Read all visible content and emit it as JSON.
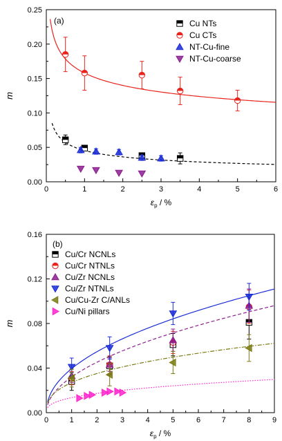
{
  "chart_data": [
    {
      "type": "scatter",
      "panel_label": "(a)",
      "xlabel": "ε",
      "xlabel_sub": "p",
      "xlabel_unit": " / %",
      "ylabel": "m",
      "xlim": [
        0,
        6
      ],
      "ylim": [
        0,
        0.25
      ],
      "xticks": [
        "0",
        "1",
        "2",
        "3",
        "4",
        "5",
        "6"
      ],
      "yticks": [
        "0.00",
        "0.05",
        "0.10",
        "0.15",
        "0.20",
        "0.25"
      ],
      "legend_position": "top-right",
      "series": [
        {
          "name": "Cu NTs",
          "marker": "square",
          "color": "#000000",
          "x": [
            0.5,
            1.0,
            2.5,
            3.5
          ],
          "y": [
            0.061,
            0.049,
            0.038,
            0.034
          ],
          "err": [
            0.007,
            0.004,
            0.004,
            0.008
          ]
        },
        {
          "name": "Cu CTs",
          "marker": "circle",
          "color": "#e8241c",
          "x": [
            0.5,
            1.0,
            2.5,
            3.5,
            5.0
          ],
          "y": [
            0.185,
            0.158,
            0.155,
            0.132,
            0.118
          ],
          "err": [
            0.025,
            0.025,
            0.02,
            0.02,
            0.015
          ]
        },
        {
          "name": "NT-Cu-fine",
          "marker": "triangle-up",
          "color": "#1a2bd6",
          "x": [
            0.9,
            1.3,
            1.9,
            2.5,
            3.0
          ],
          "y": [
            0.046,
            0.044,
            0.043,
            0.035,
            0.034
          ],
          "err": [
            0.004,
            0.004,
            0.004,
            0.004,
            0.004
          ]
        },
        {
          "name": "NT-Cu-coarse",
          "marker": "triangle-down",
          "color": "#8b1d8f",
          "x": [
            0.9,
            1.3,
            1.9,
            2.5
          ],
          "y": [
            0.019,
            0.017,
            0.013,
            0.012
          ],
          "err": [
            0,
            0,
            0,
            0
          ]
        }
      ],
      "fits": [
        {
          "color": "#e8241c",
          "dash": "",
          "a": 0.158,
          "b": -0.175,
          "x0": 0.0,
          "x1": 6.0
        },
        {
          "color": "#000000",
          "dash": "4,3",
          "a": 0.0455,
          "b": -0.33,
          "x0": 0.15,
          "x1": 6.0
        }
      ]
    },
    {
      "type": "scatter",
      "panel_label": "(b)",
      "xlabel": "ε",
      "xlabel_sub": "p",
      "xlabel_unit": " / %",
      "ylabel": "m",
      "xlim": [
        0,
        9
      ],
      "ylim": [
        0,
        0.16
      ],
      "xticks": [
        "0",
        "1",
        "2",
        "3",
        "4",
        "5",
        "6",
        "7",
        "8",
        "9"
      ],
      "yticks": [
        "0.00",
        "0.04",
        "0.08",
        "0.12",
        "0.16"
      ],
      "legend_position": "top-left",
      "series": [
        {
          "name": "Cu/Cr NCNLs",
          "marker": "square",
          "color": "#000000",
          "x": [
            1,
            2.5,
            5,
            8
          ],
          "y": [
            0.028,
            0.042,
            0.061,
            0.081
          ],
          "err": [
            0.008,
            0.008,
            0.01,
            0.015
          ]
        },
        {
          "name": "Cu/Cr NTNLs",
          "marker": "circle",
          "color": "#e8241c",
          "x": [
            1,
            2.5,
            5,
            8
          ],
          "y": [
            0.031,
            0.043,
            0.063,
            0.095
          ],
          "err": [
            0.006,
            0.008,
            0.01,
            0.015
          ]
        },
        {
          "name": "Cu/Zr NCNLs",
          "marker": "triangle-up",
          "color": "#8b1d8f",
          "x": [
            1,
            2.5,
            5,
            8
          ],
          "y": [
            0.033,
            0.043,
            0.065,
            0.096
          ],
          "err": [
            0.006,
            0.006,
            0.01,
            0.015
          ]
        },
        {
          "name": "Cu/Zr NTNLs",
          "marker": "triangle-down",
          "color": "#1a2bd6",
          "x": [
            1,
            2.5,
            5,
            8
          ],
          "y": [
            0.041,
            0.058,
            0.089,
            0.104
          ],
          "err": [
            0.008,
            0.01,
            0.01,
            0.012
          ]
        },
        {
          "name": "Cu/Cu-Zr C/ANLs",
          "marker": "triangle-left",
          "color": "#7a7a14",
          "x": [
            1,
            2.5,
            5,
            8
          ],
          "y": [
            0.031,
            0.034,
            0.045,
            0.058
          ],
          "err": [
            0.008,
            0.01,
            0.01,
            0.012
          ]
        },
        {
          "name": "Cu/Ni pillars",
          "marker": "triangle-right",
          "color": "#ff22cc",
          "x": [
            1.3,
            1.6,
            1.8,
            2.3,
            2.5,
            2.8,
            3.0
          ],
          "y": [
            0.013,
            0.015,
            0.016,
            0.018,
            0.019,
            0.019,
            0.018
          ],
          "err": [
            0,
            0,
            0,
            0,
            0,
            0,
            0
          ]
        }
      ],
      "fits": [
        {
          "color": "#1a2bd6",
          "dash": "",
          "a": 0.0395,
          "b": 0.47,
          "x0": 0.05,
          "x1": 9.0
        },
        {
          "color": "#8b1d8f",
          "dash": "5,3",
          "a": 0.032,
          "b": 0.5,
          "x0": 0.05,
          "x1": 9.0
        },
        {
          "color": "#7a7a14",
          "dash": "6,2,1.5,2",
          "a": 0.027,
          "b": 0.38,
          "x0": 0.05,
          "x1": 9.0
        },
        {
          "color": "#ff22cc",
          "dash": "1.5,2",
          "a": 0.0135,
          "b": 0.36,
          "x0": 0.05,
          "x1": 9.0
        }
      ]
    }
  ]
}
